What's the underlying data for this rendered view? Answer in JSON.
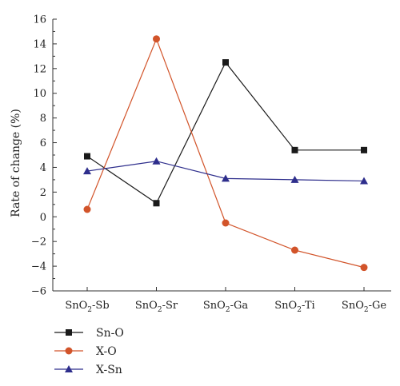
{
  "chart_data": {
    "type": "line",
    "categories": [
      {
        "base": "SnO",
        "sub": "2",
        "suffix": "-Sb"
      },
      {
        "base": "SnO",
        "sub": "2",
        "suffix": "-Sr"
      },
      {
        "base": "SnO",
        "sub": "2",
        "suffix": "-Ga"
      },
      {
        "base": "SnO",
        "sub": "2",
        "suffix": "-Ti"
      },
      {
        "base": "SnO",
        "sub": "2",
        "suffix": "-Ge"
      }
    ],
    "ylabel": "Rate of change (%)",
    "ylim": [
      -6,
      16
    ],
    "yticks": [
      -6,
      -4,
      -2,
      0,
      2,
      4,
      6,
      8,
      10,
      12,
      14,
      16
    ],
    "ytick_labels": [
      "−6",
      "−4",
      "−2",
      "0",
      "2",
      "4",
      "6",
      "8",
      "10",
      "12",
      "14",
      "16"
    ],
    "grid": false,
    "legend_position": "bottom-left, below plot",
    "series": [
      {
        "name": "Sn-O",
        "values": [
          4.9,
          1.1,
          12.5,
          5.4,
          5.4
        ],
        "color": "#1a1a1a",
        "marker": "square"
      },
      {
        "name": "X-O",
        "values": [
          0.6,
          14.4,
          -0.5,
          -2.7,
          -4.1
        ],
        "color": "#d2542a",
        "marker": "circle"
      },
      {
        "name": "X-Sn",
        "values": [
          3.7,
          4.5,
          3.1,
          3.0,
          2.9
        ],
        "color": "#2e2e8c",
        "marker": "triangle"
      }
    ]
  }
}
